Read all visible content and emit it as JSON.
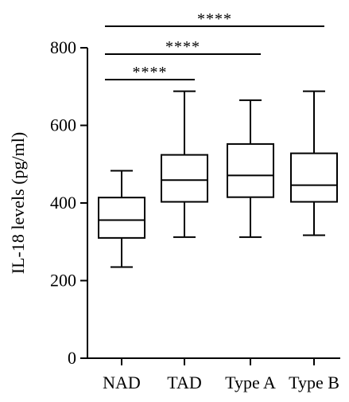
{
  "chart_data": {
    "type": "box",
    "title": "",
    "xlabel": "",
    "ylabel": "IL-18 levels (pg/ml)",
    "ylim": [
      0,
      800
    ],
    "yticks": [
      0,
      200,
      400,
      600,
      800
    ],
    "grid": false,
    "categories": [
      "NAD",
      "TAD",
      "Type A",
      "Type B"
    ],
    "boxes": [
      {
        "category": "NAD",
        "min": 235,
        "q1": 310,
        "median": 356,
        "q3": 414,
        "max": 483
      },
      {
        "category": "TAD",
        "min": 312,
        "q1": 403,
        "median": 459,
        "q3": 524,
        "max": 688
      },
      {
        "category": "Type A",
        "min": 312,
        "q1": 415,
        "median": 471,
        "q3": 552,
        "max": 665
      },
      {
        "category": "Type B",
        "min": 317,
        "q1": 403,
        "median": 446,
        "q3": 528,
        "max": 688
      }
    ],
    "significance": [
      {
        "from": "NAD",
        "to": "TAD",
        "label": "****"
      },
      {
        "from": "NAD",
        "to": "Type A",
        "label": "****"
      },
      {
        "from": "NAD",
        "to": "Type B",
        "label": "****"
      }
    ],
    "colors": {
      "stroke": "#000000",
      "background": "#ffffff"
    }
  }
}
